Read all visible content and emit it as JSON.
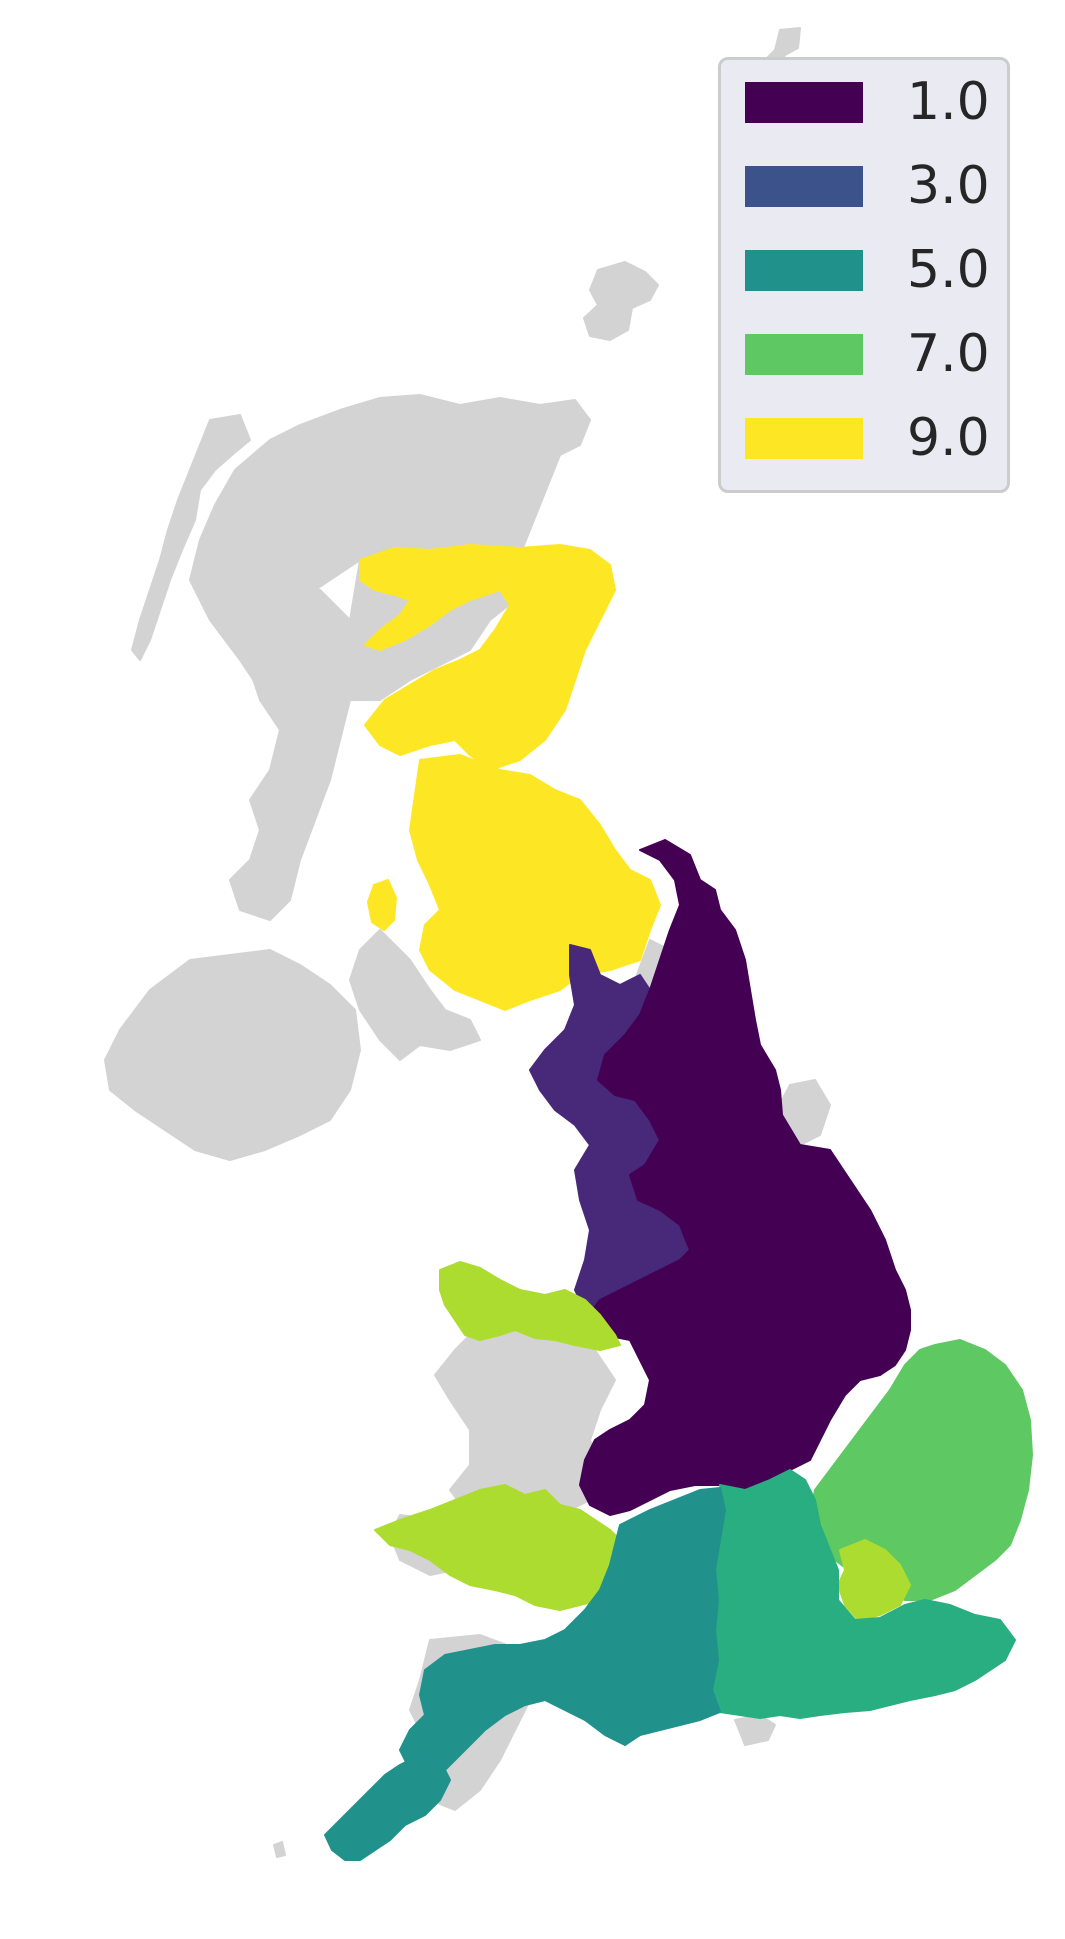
{
  "map": {
    "base_color": "#d3d3d3",
    "background": "#ffffff",
    "classes": [
      {
        "value": "1.0",
        "color": "#440154"
      },
      {
        "value": "3.0",
        "color": "#3b528b"
      },
      {
        "value": "5.0",
        "color": "#21918c"
      },
      {
        "value": "7.0",
        "color": "#5ec962"
      },
      {
        "value": "9.0",
        "color": "#fde725"
      }
    ],
    "regions": [
      {
        "id": "north-east-scotland",
        "color": "#fde725"
      },
      {
        "id": "south-scotland",
        "color": "#fde725"
      },
      {
        "id": "isle-of-arran",
        "color": "#fde725"
      },
      {
        "id": "north-west-england",
        "color": "#482878"
      },
      {
        "id": "north-east-yorkshire-east-midlands",
        "color": "#440154"
      },
      {
        "id": "north-wales",
        "color": "#addc30"
      },
      {
        "id": "south-wales",
        "color": "#addc30"
      },
      {
        "id": "east-of-england",
        "color": "#5ec962"
      },
      {
        "id": "hertfordshire",
        "color": "#addc30"
      },
      {
        "id": "south-east-england",
        "color": "#28ae80"
      },
      {
        "id": "south-west-england",
        "color": "#21918c"
      },
      {
        "id": "cornwall",
        "color": "#21918c"
      }
    ]
  },
  "legend": {
    "entries": [
      {
        "label": "1.0",
        "color": "#440154"
      },
      {
        "label": "3.0",
        "color": "#3b528b"
      },
      {
        "label": "5.0",
        "color": "#21918c"
      },
      {
        "label": "7.0",
        "color": "#5ec962"
      },
      {
        "label": "9.0",
        "color": "#fde725"
      }
    ]
  }
}
